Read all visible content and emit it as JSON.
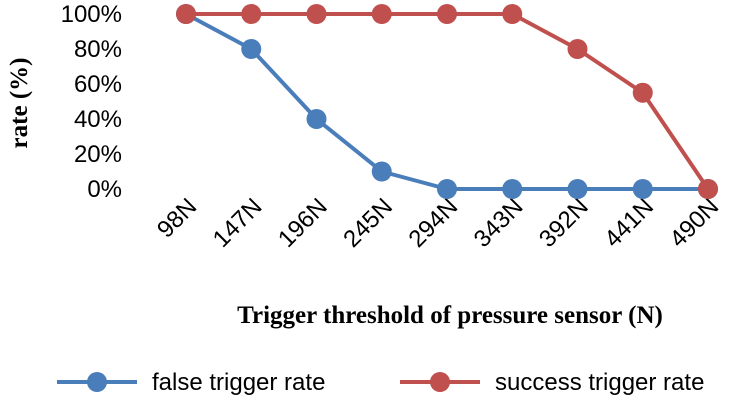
{
  "chart_data": {
    "type": "line",
    "title": "",
    "xlabel": "Trigger threshold of pressure sensor (N)",
    "ylabel": "rate (%)",
    "categories": [
      "98N",
      "147N",
      "196N",
      "245N",
      "294N",
      "343N",
      "392N",
      "441N",
      "490N"
    ],
    "y_ticks": [
      "0%",
      "20%",
      "40%",
      "60%",
      "80%",
      "100%"
    ],
    "ylim": [
      0,
      100
    ],
    "grid": false,
    "legend_position": "bottom",
    "series": [
      {
        "name": "false trigger rate",
        "color": "#4a7ebb",
        "values": [
          100,
          80,
          40,
          10,
          0,
          0,
          0,
          0,
          0
        ]
      },
      {
        "name": "success trigger rate",
        "color": "#c0504d",
        "values": [
          100,
          100,
          100,
          100,
          100,
          100,
          80,
          55,
          0
        ]
      }
    ]
  }
}
